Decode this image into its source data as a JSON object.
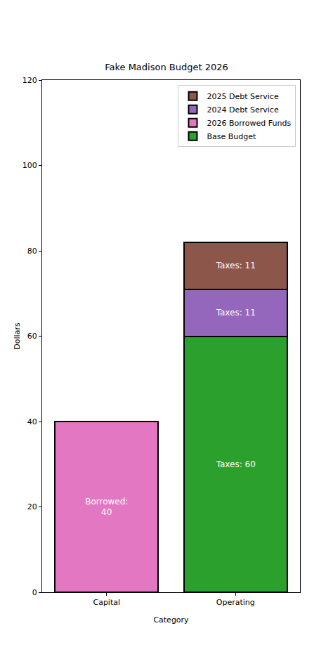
{
  "chart_data": {
    "type": "bar",
    "title": "Fake Madison Budget 2026",
    "x_label": "Category",
    "y_label": "Dollars",
    "categories": [
      "Capital",
      "Operating"
    ],
    "stacked": true,
    "data_labels": true,
    "grid": false,
    "legend": "upper right",
    "ylim": [
      0,
      120
    ],
    "yticks": [
      0,
      20,
      40,
      60,
      80,
      100,
      120
    ],
    "series": [
      {
        "name": "Base Budget",
        "color": "#2ca02c",
        "values": [
          null,
          60
        ],
        "value_labels": [
          null,
          "Taxes: 60"
        ]
      },
      {
        "name": "2026 Borrowed Funds",
        "color": "#e377c2",
        "values": [
          40,
          null
        ],
        "value_labels": [
          "Borrowed:\n40",
          null
        ]
      },
      {
        "name": "2024 Debt Service",
        "color": "#9467bd",
        "values": [
          null,
          11
        ],
        "value_labels": [
          null,
          "Taxes: 11"
        ]
      },
      {
        "name": "2025 Debt Service",
        "color": "#8c564b",
        "values": [
          null,
          11
        ],
        "value_labels": [
          null,
          "Taxes: 11"
        ]
      }
    ]
  }
}
